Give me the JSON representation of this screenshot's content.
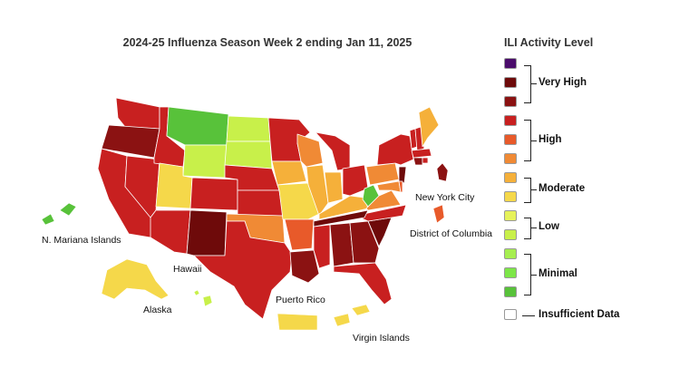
{
  "title": "2024-25 Influenza Season Week 2 ending Jan 11, 2025",
  "legend": {
    "title": "ILI Activity Level",
    "levels": [
      {
        "color": "#4b0c6b"
      },
      {
        "color": "#6e0a0a"
      },
      {
        "color": "#8b1212"
      },
      {
        "color": "#c82020"
      },
      {
        "color": "#e85a2a"
      },
      {
        "color": "#f08a35"
      },
      {
        "color": "#f5b03a"
      },
      {
        "color": "#f5d84a"
      },
      {
        "color": "#e6f25a"
      },
      {
        "color": "#c8f04a"
      },
      {
        "color": "#a6ee50"
      },
      {
        "color": "#7de648"
      },
      {
        "color": "#58c23a"
      },
      {
        "color": "#ffffff"
      }
    ],
    "groups": [
      {
        "label": "Very High"
      },
      {
        "label": "High"
      },
      {
        "label": "Moderate"
      },
      {
        "label": "Low"
      },
      {
        "label": "Minimal"
      },
      {
        "label": "Insufficient Data"
      }
    ]
  },
  "territories": {
    "nyc": "New York City",
    "dc": "District of Columbia",
    "nmi": "N. Mariana Islands",
    "hawaii": "Hawaii",
    "alaska": "Alaska",
    "puerto_rico": "Puerto Rico",
    "virgin_islands": "Virgin Islands"
  }
}
